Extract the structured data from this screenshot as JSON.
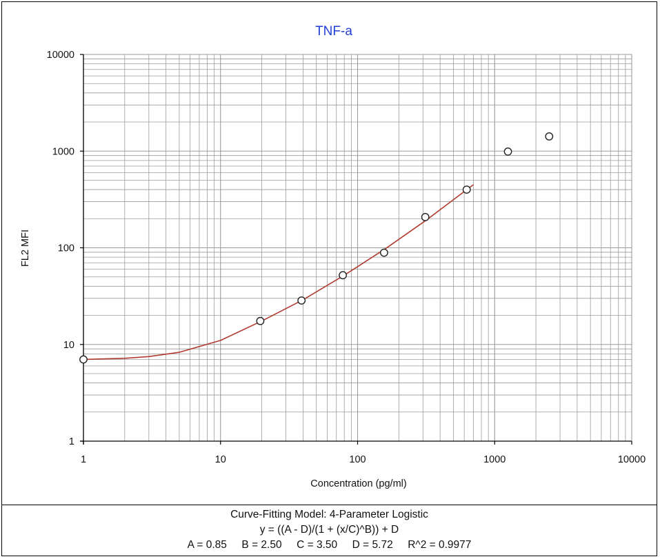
{
  "chart_data": {
    "type": "scatter",
    "title": "TNF-a",
    "xlabel": "Concentration (pg/ml)",
    "ylabel": "FL2 MFI",
    "x_scale": "log",
    "y_scale": "log",
    "xlim": [
      1,
      10000
    ],
    "ylim": [
      1,
      10000
    ],
    "x_tick_labels": [
      "1",
      "10",
      "100",
      "1000",
      "10000"
    ],
    "y_tick_labels": [
      "1",
      "10",
      "100",
      "1000",
      "10000"
    ],
    "grid": true,
    "series": [
      {
        "points": [
          {
            "x": 1,
            "y": 7
          },
          {
            "x": 19.5,
            "y": 17.5
          },
          {
            "x": 39,
            "y": 28.5
          },
          {
            "x": 78,
            "y": 52
          },
          {
            "x": 156,
            "y": 89
          },
          {
            "x": 312,
            "y": 208
          },
          {
            "x": 625,
            "y": 400
          },
          {
            "x": 1250,
            "y": 990
          },
          {
            "x": 2500,
            "y": 1420
          }
        ]
      }
    ],
    "fit_curve": {
      "x": [
        1,
        2,
        3,
        5,
        10,
        20,
        40,
        80,
        160,
        320,
        700
      ],
      "y": [
        7.0,
        7.2,
        7.5,
        8.3,
        11,
        17.5,
        29,
        52,
        98,
        195,
        450
      ],
      "color": "#b03a2e"
    },
    "colors": {
      "title": "#1f3fd8",
      "marker": "#222222",
      "grid": "#9a9a9a"
    }
  },
  "footer": {
    "line1": "Curve-Fitting Model: 4-Parameter Logistic",
    "line2": "y = ((A - D)/(1 + (x/C)^B)) + D",
    "line3": "A = 0.85     B = 2.50     C = 3.50     D = 5.72     R^2 = 0.9977"
  }
}
